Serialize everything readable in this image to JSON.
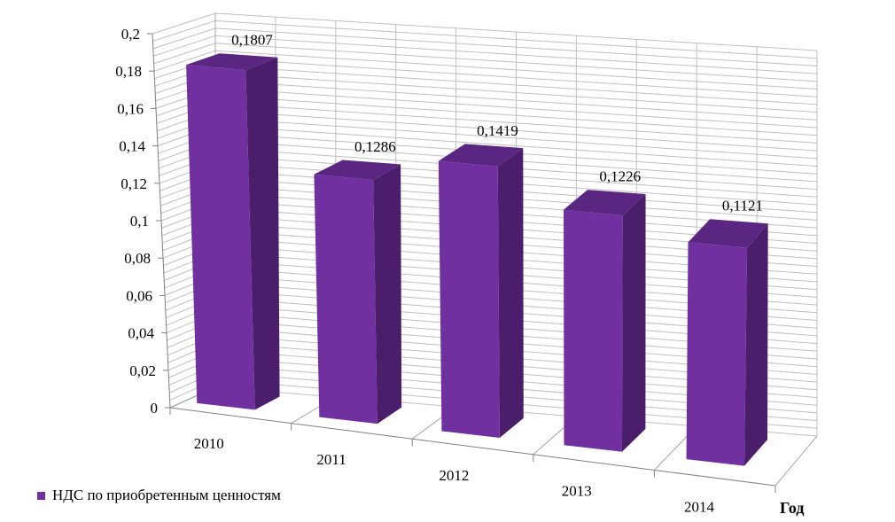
{
  "chart_data": {
    "type": "bar",
    "three_d": true,
    "categories": [
      "2010",
      "2011",
      "2012",
      "2013",
      "2014"
    ],
    "series": [
      {
        "name": "НДС по приобретенным ценностям",
        "values": [
          0.1807,
          0.1286,
          0.1419,
          0.1226,
          0.1121
        ],
        "color": "#7030a0"
      }
    ],
    "data_labels": [
      "0,1807",
      "0,1286",
      "0,1419",
      "0,1226",
      "0,1121"
    ],
    "yticks": [
      "0",
      "0,02",
      "0,04",
      "0,06",
      "0,08",
      "0,1",
      "0,12",
      "0,14",
      "0,16",
      "0,18",
      "0,2"
    ],
    "ylim": [
      0,
      0.2
    ],
    "xlabel": "Год",
    "ylabel": "",
    "grid": true,
    "legend": "bottom-left"
  }
}
